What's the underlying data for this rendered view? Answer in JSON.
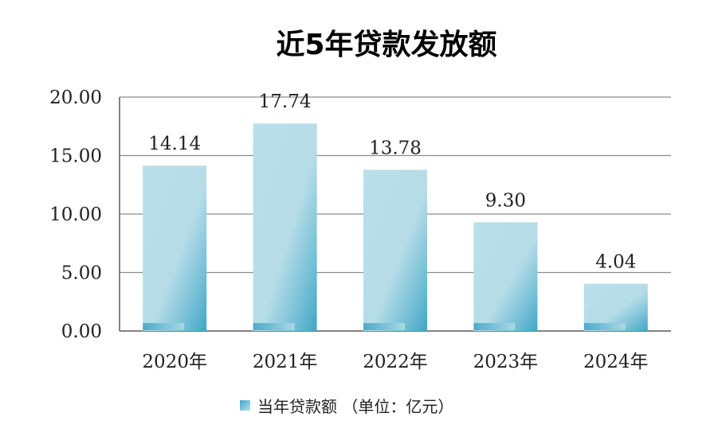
{
  "chart_data": {
    "type": "bar",
    "title": "近5年贷款发放额",
    "categories": [
      "2020年",
      "2021年",
      "2022年",
      "2023年",
      "2024年"
    ],
    "series": [
      {
        "name": "当年贷款额 （单位：亿元）",
        "values": [
          14.14,
          17.74,
          13.78,
          9.3,
          4.04
        ],
        "value_labels": [
          "14.14",
          "17.74",
          "13.78",
          "9.30",
          "4.04"
        ]
      }
    ],
    "yticks": [
      "0.00",
      "5.00",
      "10.00",
      "15.00",
      "20.00"
    ],
    "ylim": [
      0,
      20
    ],
    "grid": true,
    "legend_position": "bottom",
    "colors": {
      "bar_light": "#b8dde9",
      "bar_dark": "#3ea6c6",
      "grid": "#8c8c8c",
      "axis": "#5a5a5a"
    }
  }
}
